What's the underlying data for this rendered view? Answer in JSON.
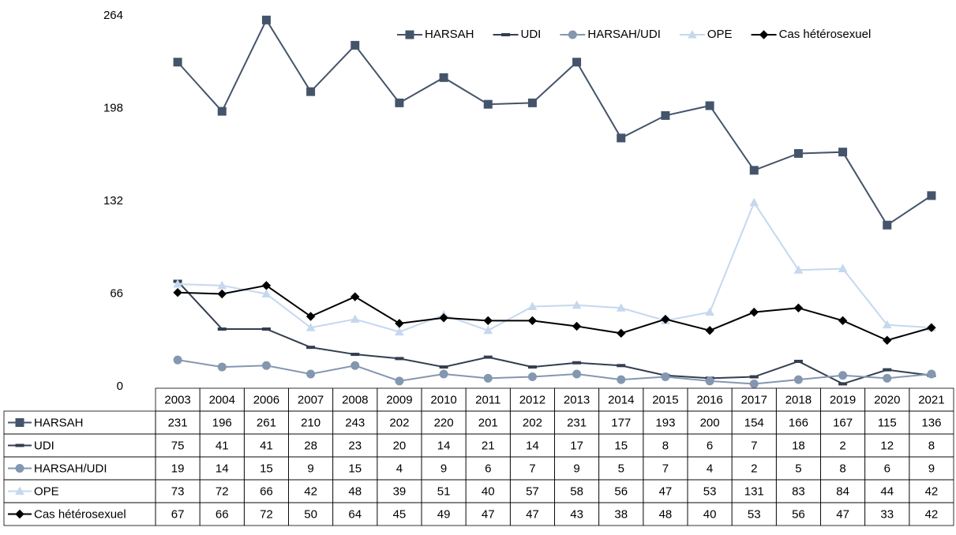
{
  "chart_data": {
    "type": "line",
    "categories": [
      "2003",
      "2004",
      "2006",
      "2007",
      "2008",
      "2009",
      "2010",
      "2011",
      "2012",
      "2013",
      "2014",
      "2015",
      "2016",
      "2017",
      "2018",
      "2019",
      "2020",
      "2021"
    ],
    "ylim": [
      0,
      264
    ],
    "yticks": [
      0,
      66,
      132,
      198,
      264
    ],
    "grid": false,
    "legend": "top",
    "series": [
      {
        "name": "HARSAH",
        "color": "#44546a",
        "marker": "square",
        "values": [
          231,
          196,
          261,
          210,
          243,
          202,
          220,
          201,
          202,
          231,
          177,
          193,
          200,
          154,
          166,
          167,
          115,
          136
        ]
      },
      {
        "name": "UDI",
        "color": "#333f50",
        "marker": "dash",
        "values": [
          75,
          41,
          41,
          28,
          23,
          20,
          14,
          21,
          14,
          17,
          15,
          8,
          6,
          7,
          18,
          2,
          12,
          8
        ]
      },
      {
        "name": "HARSAH/UDI",
        "color": "#8497b0",
        "marker": "circle",
        "values": [
          19,
          14,
          15,
          9,
          15,
          4,
          9,
          6,
          7,
          9,
          5,
          7,
          4,
          2,
          5,
          8,
          6,
          9
        ]
      },
      {
        "name": "OPE",
        "color": "#c5d8ee",
        "marker": "triangle",
        "values": [
          73,
          72,
          66,
          42,
          48,
          39,
          51,
          40,
          57,
          58,
          56,
          47,
          53,
          131,
          83,
          84,
          44,
          42
        ]
      },
      {
        "name": "Cas hétérosexuel",
        "color": "#000000",
        "marker": "diamond",
        "values": [
          67,
          66,
          72,
          50,
          64,
          45,
          49,
          47,
          47,
          43,
          38,
          48,
          40,
          53,
          56,
          47,
          33,
          42
        ]
      }
    ]
  }
}
